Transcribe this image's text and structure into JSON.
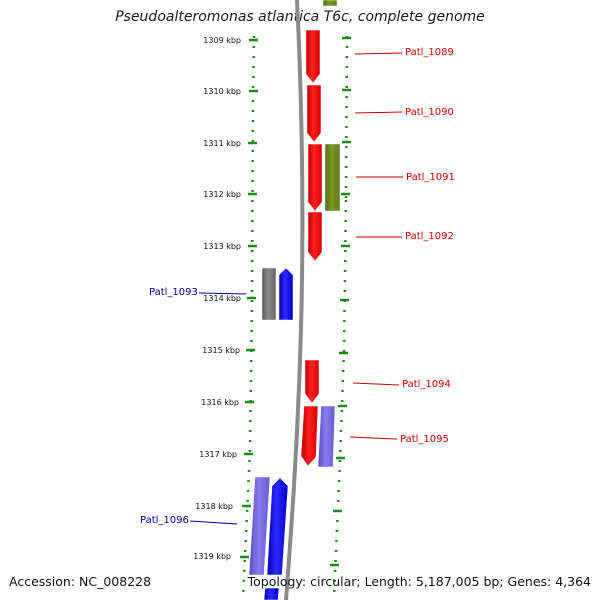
{
  "title": "Pseudoalteromonas atlantica T6c, complete genome",
  "footer": {
    "accession": "Accession: NC_008228",
    "summary": "Topology: circular; Length: 5,187,005 bp; Genes: 4,364"
  },
  "colors": {
    "forward_gene": "#ff0000",
    "reverse_gene": "#0000ff",
    "olive_gene": "#6b8e23",
    "periwinkle_gene": "#7b68ee",
    "grey_gene": "#777777",
    "tick_green": "#1a8a1a",
    "forward_label": "#cc0000",
    "reverse_label": "#000099",
    "backbone": "#888888"
  },
  "ruler": [
    {
      "label": "1309 kbp",
      "kbp": 1309
    },
    {
      "label": "1310 kbp",
      "kbp": 1310
    },
    {
      "label": "1311 kbp",
      "kbp": 1311
    },
    {
      "label": "1312 kbp",
      "kbp": 1312
    },
    {
      "label": "1313 kbp",
      "kbp": 1313
    },
    {
      "label": "1314 kbp",
      "kbp": 1314
    },
    {
      "label": "1315 kbp",
      "kbp": 1315
    },
    {
      "label": "1316 kbp",
      "kbp": 1316
    },
    {
      "label": "1317 kbp",
      "kbp": 1317
    },
    {
      "label": "1318 kbp",
      "kbp": 1318
    },
    {
      "label": "1319 kbp",
      "kbp": 1319
    }
  ],
  "gene_labels": [
    {
      "name": "Patl_1089",
      "strand": "forward"
    },
    {
      "name": "Patl_1090",
      "strand": "forward"
    },
    {
      "name": "Patl_1091",
      "strand": "forward"
    },
    {
      "name": "Patl_1092",
      "strand": "forward"
    },
    {
      "name": "Patl_1093",
      "strand": "reverse"
    },
    {
      "name": "Patl_1094",
      "strand": "forward"
    },
    {
      "name": "Patl_1095",
      "strand": "forward"
    },
    {
      "name": "Patl_1096",
      "strand": "reverse"
    }
  ]
}
